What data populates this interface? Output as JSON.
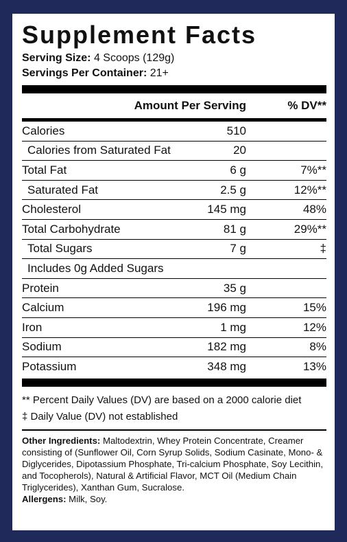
{
  "title": "Supplement Facts",
  "serving_size_label": "Serving Size:",
  "serving_size_value": "4 Scoops (129g)",
  "servings_per_container_label": "Servings Per Container:",
  "servings_per_container_value": "21+",
  "header": {
    "amount": "Amount Per Serving",
    "dv": "% DV**"
  },
  "rows": [
    {
      "name": "Calories",
      "amount": "510",
      "dv": ""
    },
    {
      "name": "Calories from Saturated Fat",
      "amount": "20",
      "dv": ""
    },
    {
      "name": "Total Fat",
      "amount": "6 g",
      "dv": "7%**"
    },
    {
      "name": "Saturated Fat",
      "amount": "2.5 g",
      "dv": "12%**"
    },
    {
      "name": "Cholesterol",
      "amount": "145 mg",
      "dv": "48%"
    },
    {
      "name": "Total Carbohydrate",
      "amount": "81 g",
      "dv": "29%**"
    },
    {
      "name": "Total Sugars",
      "amount": "7 g",
      "dv": "‡"
    },
    {
      "name": "Includes 0g Added Sugars",
      "amount": "",
      "dv": ""
    },
    {
      "name": "Protein",
      "amount": "35 g",
      "dv": ""
    },
    {
      "name": "Calcium",
      "amount": "196 mg",
      "dv": "15%"
    },
    {
      "name": "Iron",
      "amount": "1 mg",
      "dv": "12%"
    },
    {
      "name": "Sodium",
      "amount": "182 mg",
      "dv": "8%"
    },
    {
      "name": "Potassium",
      "amount": "348 mg",
      "dv": "13%"
    }
  ],
  "footnote_dv": "** Percent Daily Values (DV) are based on a 2000 calorie diet",
  "footnote_not_established": "‡ Daily Value (DV) not established",
  "other_ingredients_label": "Other Ingredients:",
  "other_ingredients_text": "Maltodextrin, Whey Protein Concentrate, Creamer consisting of (Sunflower Oil, Corn Syrup Solids, Sodium Casinate, Mono- & Diglycerides, Dipotassium Phosphate, Tri-calcium Phosphate, Soy Lecithin, and Tocopherols), Natural & Artificial Flavor, MCT Oil (Medium Chain Triglycerides), Xanthan Gum, Sucralose.",
  "allergens_label": "Allergens:",
  "allergens_text": "Milk, Soy.",
  "colors": {
    "border": "#1f2a5a",
    "panel": "#ffffff",
    "text": "#111111"
  }
}
